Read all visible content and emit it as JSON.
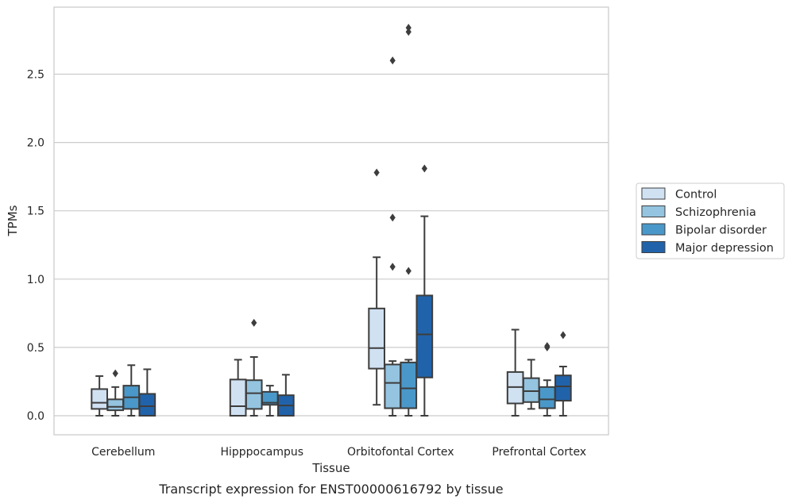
{
  "chart_data": {
    "type": "box",
    "xlabel": "Tissue",
    "ylabel": "TPMs",
    "caption": "Transcript expression for ENST00000616792 by tissue",
    "ylim": [
      -0.14,
      2.97
    ],
    "yticks": [
      0.0,
      0.5,
      1.0,
      1.5,
      2.0,
      2.5
    ],
    "ytick_labels": [
      "0.0",
      "0.5",
      "1.0",
      "1.5",
      "2.0",
      "2.5"
    ],
    "grid": "horizontal",
    "legend_position": "right",
    "categories": [
      "Cerebellum",
      "Hipppocampus",
      "Orbitofontal Cortex",
      "Prefrontal Cortex"
    ],
    "series": [
      {
        "name": "Control",
        "color": "#d0e1f2",
        "boxes": [
          {
            "min": 0.0,
            "q1": 0.05,
            "median": 0.095,
            "q3": 0.195,
            "max": 0.29,
            "outliers": []
          },
          {
            "min": 0.0,
            "q1": 0.0,
            "median": 0.07,
            "q3": 0.265,
            "max": 0.41,
            "outliers": []
          },
          {
            "min": 0.08,
            "q1": 0.345,
            "median": 0.495,
            "q3": 0.785,
            "max": 1.16,
            "outliers": [
              1.78
            ]
          },
          {
            "min": 0.0,
            "q1": 0.09,
            "median": 0.21,
            "q3": 0.32,
            "max": 0.63,
            "outliers": []
          }
        ]
      },
      {
        "name": "Schizophrenia",
        "color": "#94c4df",
        "boxes": [
          {
            "min": 0.0,
            "q1": 0.04,
            "median": 0.065,
            "q3": 0.12,
            "max": 0.21,
            "outliers": [
              0.31
            ]
          },
          {
            "min": 0.0,
            "q1": 0.05,
            "median": 0.165,
            "q3": 0.26,
            "max": 0.43,
            "outliers": [
              0.68
            ]
          },
          {
            "min": 0.0,
            "q1": 0.055,
            "median": 0.24,
            "q3": 0.375,
            "max": 0.4,
            "outliers": [
              1.09,
              1.45,
              2.6
            ]
          },
          {
            "min": 0.05,
            "q1": 0.1,
            "median": 0.18,
            "q3": 0.275,
            "max": 0.41,
            "outliers": []
          }
        ]
      },
      {
        "name": "Bipolar disorder",
        "color": "#4a98c9",
        "boxes": [
          {
            "min": 0.0,
            "q1": 0.05,
            "median": 0.135,
            "q3": 0.22,
            "max": 0.37,
            "outliers": []
          },
          {
            "min": 0.0,
            "q1": 0.08,
            "median": 0.095,
            "q3": 0.175,
            "max": 0.22,
            "outliers": []
          },
          {
            "min": 0.0,
            "q1": 0.055,
            "median": 0.2,
            "q3": 0.39,
            "max": 0.41,
            "outliers": [
              1.06,
              2.81,
              2.84
            ]
          },
          {
            "min": 0.0,
            "q1": 0.055,
            "median": 0.12,
            "q3": 0.21,
            "max": 0.26,
            "outliers": [
              0.5,
              0.51
            ]
          }
        ]
      },
      {
        "name": "Major depression",
        "color": "#2163aa",
        "boxes": [
          {
            "min": 0.0,
            "q1": 0.0,
            "median": 0.07,
            "q3": 0.16,
            "max": 0.34,
            "outliers": []
          },
          {
            "min": 0.0,
            "q1": 0.0,
            "median": 0.075,
            "q3": 0.15,
            "max": 0.3,
            "outliers": []
          },
          {
            "min": 0.0,
            "q1": 0.28,
            "median": 0.595,
            "q3": 0.88,
            "max": 1.46,
            "outliers": [
              1.81
            ]
          },
          {
            "min": 0.0,
            "q1": 0.11,
            "median": 0.215,
            "q3": 0.295,
            "max": 0.36,
            "outliers": [
              0.59
            ]
          }
        ]
      }
    ]
  }
}
